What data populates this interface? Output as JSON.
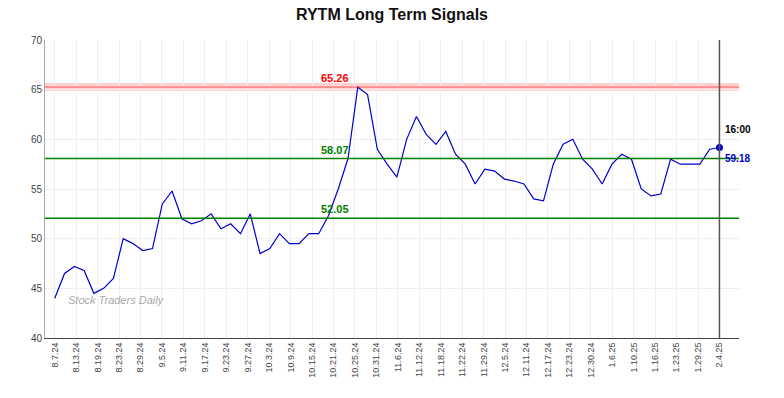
{
  "chart_data": {
    "type": "line",
    "title": "RYTM Long Term Signals",
    "color": "#0000cc",
    "values": [
      44.0,
      46.5,
      47.2,
      46.8,
      44.5,
      45.0,
      46.0,
      50.0,
      49.5,
      48.8,
      49.0,
      53.5,
      54.8,
      52.0,
      51.5,
      51.8,
      52.5,
      51.0,
      51.5,
      50.5,
      52.5,
      48.5,
      49.0,
      50.5,
      49.5,
      49.5,
      50.5,
      50.5,
      52.3,
      55.0,
      58.07,
      65.26,
      64.5,
      59.0,
      57.5,
      56.2,
      60.0,
      62.3,
      60.5,
      59.5,
      60.8,
      58.5,
      57.5,
      55.5,
      57.0,
      56.8,
      56.0,
      55.8,
      55.5,
      54.0,
      53.8,
      57.5,
      59.5,
      60.0,
      58.0,
      57.0,
      55.5,
      57.5,
      58.5,
      58.0,
      55.0,
      54.3,
      54.5,
      58.0,
      57.5,
      57.5,
      57.5,
      59.0,
      59.18
    ],
    "xlim": [
      -1,
      70
    ],
    "xticks": [
      {
        "value": 0,
        "label": "8.7.24"
      },
      {
        "value": 2.1935,
        "label": "8.13.24"
      },
      {
        "value": 4.3871,
        "label": "8.19.24"
      },
      {
        "value": 6.5806,
        "label": "8.23.24"
      },
      {
        "value": 8.7742,
        "label": "8.29.24"
      },
      {
        "value": 10.9677,
        "label": "9.5.24"
      },
      {
        "value": 13.1613,
        "label": "9.11.24"
      },
      {
        "value": 15.3548,
        "label": "9.17.24"
      },
      {
        "value": 17.5484,
        "label": "9.23.24"
      },
      {
        "value": 19.7419,
        "label": "9.27.24"
      },
      {
        "value": 21.9355,
        "label": "10.3.24"
      },
      {
        "value": 24.129,
        "label": "10.9.24"
      },
      {
        "value": 26.3226,
        "label": "10.15.24"
      },
      {
        "value": 28.5161,
        "label": "10.21.24"
      },
      {
        "value": 30.7097,
        "label": "10.25.24"
      },
      {
        "value": 32.9032,
        "label": "10.31.24"
      },
      {
        "value": 35.0968,
        "label": "11.6.24"
      },
      {
        "value": 37.2903,
        "label": "11.12.24"
      },
      {
        "value": 39.4839,
        "label": "11.18.24"
      },
      {
        "value": 41.6774,
        "label": "11.22.24"
      },
      {
        "value": 43.871,
        "label": "11.29.24"
      },
      {
        "value": 46.0645,
        "label": "12.5.24"
      },
      {
        "value": 48.2581,
        "label": "12.11.24"
      },
      {
        "value": 50.4516,
        "label": "12.17.24"
      },
      {
        "value": 52.6452,
        "label": "12.23.24"
      },
      {
        "value": 54.8387,
        "label": "12.30.24"
      },
      {
        "value": 57.0323,
        "label": "1.6.25"
      },
      {
        "value": 59.2258,
        "label": "1.10.25"
      },
      {
        "value": 61.4194,
        "label": "1.16.25"
      },
      {
        "value": 63.6129,
        "label": "1.23.25"
      },
      {
        "value": 65.8065,
        "label": "1.29.25"
      },
      {
        "value": 68,
        "label": "2.4.25"
      }
    ],
    "ylim": [
      40,
      70
    ],
    "yticks": [
      40,
      45,
      50,
      55,
      60,
      65,
      70
    ],
    "grid": true,
    "reference_lines": [
      {
        "y": 65.26,
        "label": "65.26",
        "color": "red"
      },
      {
        "y": 58.07,
        "label": "58.07",
        "color": "green"
      },
      {
        "y": 52.05,
        "label": "52.05",
        "color": "green"
      }
    ],
    "last_point": {
      "value": 59.18,
      "label": "59.18",
      "time": "16:00"
    },
    "watermark": "Stock Traders Daily"
  }
}
